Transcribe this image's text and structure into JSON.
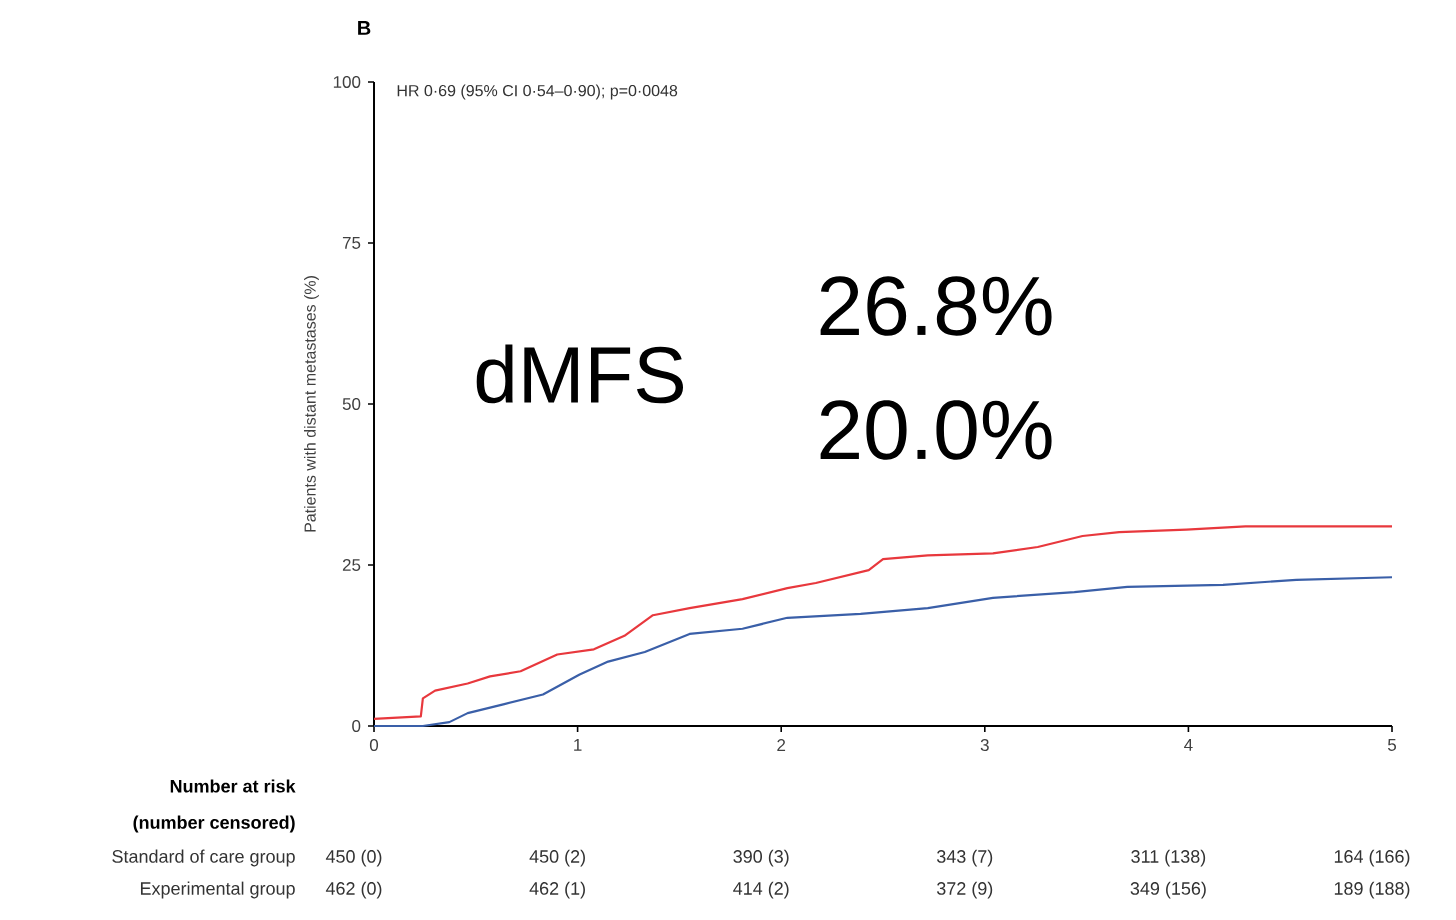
{
  "chart_data": {
    "type": "line",
    "title": "B",
    "subtitle": "HR 0·69 (95% CI 0·54–0·90); p=0·0048",
    "ylabel": "Patients with distant metastases (%)",
    "xlim": [
      0,
      5
    ],
    "xticks": [
      0,
      1,
      2,
      3,
      4,
      5
    ],
    "ylim": [
      0,
      100
    ],
    "yticks": [
      0,
      25,
      50,
      75,
      100
    ],
    "marker": "none",
    "line_style": "solid",
    "series": [
      {
        "color": "#e8383d",
        "x": [
          0,
          0.23,
          0.24,
          0.3,
          0.46,
          0.57,
          0.72,
          0.9,
          1.08,
          1.23,
          1.37,
          1.55,
          1.81,
          2.03,
          2.17,
          2.43,
          2.5,
          2.72,
          3.04,
          3.26,
          3.48,
          3.66,
          3.99,
          4.28,
          5
        ],
        "values": [
          1.1,
          1.5,
          4.3,
          5.5,
          6.6,
          7.7,
          8.5,
          11.1,
          11.9,
          14,
          17.2,
          18.3,
          19.7,
          21.4,
          22.2,
          24.2,
          25.9,
          26.5,
          26.8,
          27.8,
          29.5,
          30.1,
          30.5,
          31,
          31
        ]
      },
      {
        "color": "#3a5fa8",
        "x": [
          0,
          0.24,
          0.37,
          0.46,
          0.64,
          0.83,
          1.01,
          1.15,
          1.33,
          1.55,
          1.81,
          2.03,
          2.39,
          2.72,
          3.04,
          3.44,
          3.7,
          4.17,
          4.53,
          5
        ],
        "values": [
          0,
          0,
          0.6,
          2,
          3.4,
          4.9,
          8,
          10,
          11.5,
          14.3,
          15.1,
          16.8,
          17.4,
          18.3,
          19.9,
          20.8,
          21.6,
          21.9,
          22.7,
          23.1
        ]
      }
    ],
    "annotations": [
      "dMFS",
      "26.8%",
      "20.0%",
      "Number at risk",
      "(number censored)",
      "Standard of care group",
      "450 (0)",
      "450 (2)",
      "390 (3)",
      "343 (7)",
      "311 (138)",
      "164 (166)",
      "Experimental group",
      "462 (0)",
      "462 (1)",
      "414 (2)",
      "372 (9)",
      "349 (156)",
      "189 (188)"
    ]
  }
}
